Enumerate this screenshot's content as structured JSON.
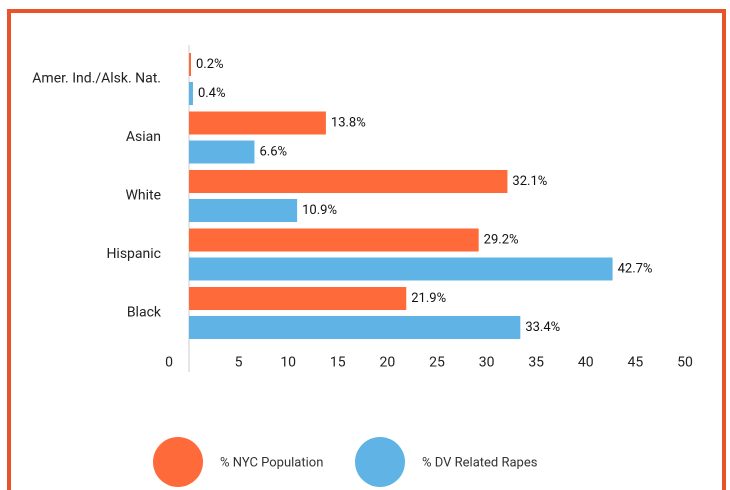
{
  "chart_data": {
    "type": "hbar",
    "categories": [
      "Amer. Ind./Alsk. Nat.",
      "Asian",
      "White",
      "Hispanic",
      "Black"
    ],
    "series": [
      {
        "name": "% NYC Population",
        "color": "#fe6a3a",
        "values": [
          0.2,
          13.8,
          32.1,
          29.2,
          21.9
        ],
        "value_labels": [
          "0.2%",
          "13.8%",
          "32.1%",
          "29.2%",
          "21.9%"
        ]
      },
      {
        "name": "% DV Related Rapes",
        "color": "#5fb4e5",
        "values": [
          0.4,
          6.6,
          10.9,
          42.7,
          33.4
        ],
        "value_labels": [
          "0.4%",
          "6.6%",
          "10.9%",
          "42.7%",
          "33.4%"
        ]
      }
    ],
    "xlim": [
      0,
      50
    ],
    "xticks": [
      0,
      5,
      10,
      15,
      20,
      25,
      30,
      35,
      40,
      45,
      50
    ],
    "legend": "bottom"
  }
}
